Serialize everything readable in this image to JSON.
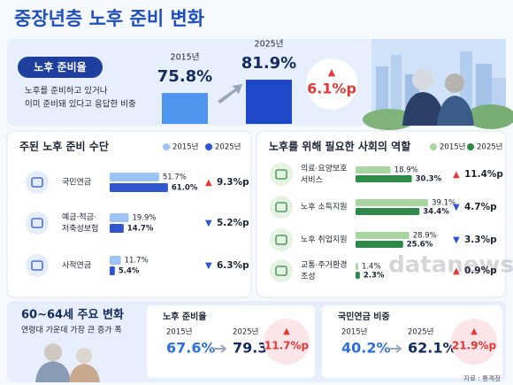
{
  "title": "중장년층 노후 준비 변화",
  "readiness": {
    "label": "노후 준비율",
    "description": [
      "노후를 준비하고 있거나",
      "이미 준비돼 있다고 응답한 비중"
    ],
    "years": [
      "2015년",
      "2025년"
    ],
    "values": [
      75.8,
      81.9
    ],
    "value_labels": [
      "75.8%",
      "81.9%"
    ],
    "colors": [
      "#4d95ee",
      "#1f48c9"
    ],
    "change_icon": "▲",
    "change": "6.1%p",
    "change_color": "#e53935"
  },
  "means": {
    "title": "주된 노후 준비 수단",
    "legend": [
      "2015년",
      "2025년"
    ],
    "colors": [
      "#9cc4f6",
      "#2f56cc"
    ],
    "rows": [
      {
        "label": [
          "국민연금"
        ],
        "values": [
          51.7,
          61.0
        ],
        "value_labels": [
          "51.7%",
          "61.0%"
        ],
        "change_icon": "▲",
        "change": "9.3%p",
        "change_color": "#e53935"
      },
      {
        "label": [
          "예금·적금·",
          "저축성보험"
        ],
        "values": [
          19.9,
          14.7
        ],
        "value_labels": [
          "19.9%",
          "14.7%"
        ],
        "change_icon": "▼",
        "change": "5.2%p",
        "change_color": "#2f56cc"
      },
      {
        "label": [
          "사적연금"
        ],
        "values": [
          11.7,
          5.4
        ],
        "value_labels": [
          "11.7%",
          "5.4%"
        ],
        "change_icon": "▼",
        "change": "6.3%p",
        "change_color": "#2f56cc"
      }
    ]
  },
  "roles": {
    "title": "노후를 위해 필요한 사회의 역할",
    "legend": [
      "2015년",
      "2025년"
    ],
    "colors": [
      "#a9d5a0",
      "#2f8a4a"
    ],
    "rows": [
      {
        "label": [
          "의료·요양보호",
          "서비스"
        ],
        "values": [
          18.9,
          30.3
        ],
        "value_labels": [
          "18.9%",
          "30.3%"
        ],
        "change_icon": "▲",
        "change": "11.4%p",
        "change_color": "#e53935"
      },
      {
        "label": [
          "노후 소득지원"
        ],
        "values": [
          39.1,
          34.4
        ],
        "value_labels": [
          "39.1%",
          "34.4%"
        ],
        "change_icon": "▼",
        "change": "4.7%p",
        "change_color": "#2f56cc"
      },
      {
        "label": [
          "노후 취업지원"
        ],
        "values": [
          28.9,
          25.6
        ],
        "value_labels": [
          "28.9%",
          "25.6%"
        ],
        "change_icon": "▼",
        "change": "3.3%p",
        "change_color": "#2f56cc"
      },
      {
        "label": [
          "교통·주거환경",
          "조성"
        ],
        "values": [
          1.4,
          2.3
        ],
        "value_labels": [
          "1.4%",
          "2.3%"
        ],
        "change_icon": "▲",
        "change": "0.9%p",
        "change_color": "#e53935"
      }
    ]
  },
  "age_60_64": {
    "title": "60~64세 주요 변화",
    "subtitle": "연령대 가운데 가장 큰 증가 폭",
    "panels": [
      {
        "label": "노후 준비율",
        "years": [
          "2015년",
          "2025년"
        ],
        "values": [
          "67.6%",
          "79.3%"
        ],
        "change_icon": "▲",
        "change": "11.7%p"
      },
      {
        "label": "국민연금 비중",
        "years": [
          "2015년",
          "2025년"
        ],
        "values": [
          "40.2%",
          "62.1%"
        ],
        "change_icon": "▲",
        "change": "21.9%p"
      }
    ]
  },
  "watermark": "datanews",
  "source": "자료 : 통계청"
}
